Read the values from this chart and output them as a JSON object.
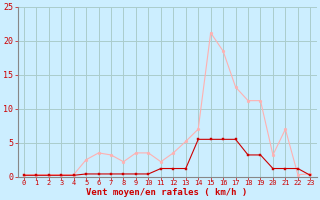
{
  "x": [
    0,
    1,
    2,
    3,
    4,
    5,
    6,
    7,
    8,
    9,
    10,
    11,
    12,
    13,
    14,
    15,
    16,
    17,
    18,
    19,
    20,
    21,
    22,
    23
  ],
  "rafales": [
    0.3,
    0.3,
    0.3,
    0.3,
    0.3,
    2.5,
    3.5,
    3.2,
    2.2,
    3.5,
    3.5,
    2.2,
    3.5,
    5.2,
    7.0,
    21.2,
    18.5,
    13.2,
    11.2,
    11.2,
    3.2,
    7.0,
    0.3,
    0.4
  ],
  "moyen": [
    0.2,
    0.2,
    0.2,
    0.2,
    0.2,
    0.4,
    0.4,
    0.4,
    0.4,
    0.4,
    0.4,
    1.2,
    1.2,
    1.2,
    5.5,
    5.5,
    5.5,
    5.5,
    3.2,
    3.2,
    1.2,
    1.2,
    1.2,
    0.2
  ],
  "line_color_rafales": "#FFB0B0",
  "line_color_moyen": "#CC0000",
  "bg_color": "#CCEEFF",
  "grid_color": "#AACCCC",
  "xlabel": "Vent moyen/en rafales ( km/h )",
  "xlabel_color": "#CC0000",
  "tick_color": "#CC0000",
  "spine_color": "#888888",
  "ylim": [
    0,
    25
  ],
  "xlim": [
    -0.5,
    23.5
  ],
  "yticks": [
    0,
    5,
    10,
    15,
    20,
    25
  ],
  "xticks": [
    0,
    1,
    2,
    3,
    4,
    5,
    6,
    7,
    8,
    9,
    10,
    11,
    12,
    13,
    14,
    15,
    16,
    17,
    18,
    19,
    20,
    21,
    22,
    23
  ],
  "xlabel_fontsize": 6.5,
  "tick_fontsize_x": 5.0,
  "tick_fontsize_y": 6.0
}
